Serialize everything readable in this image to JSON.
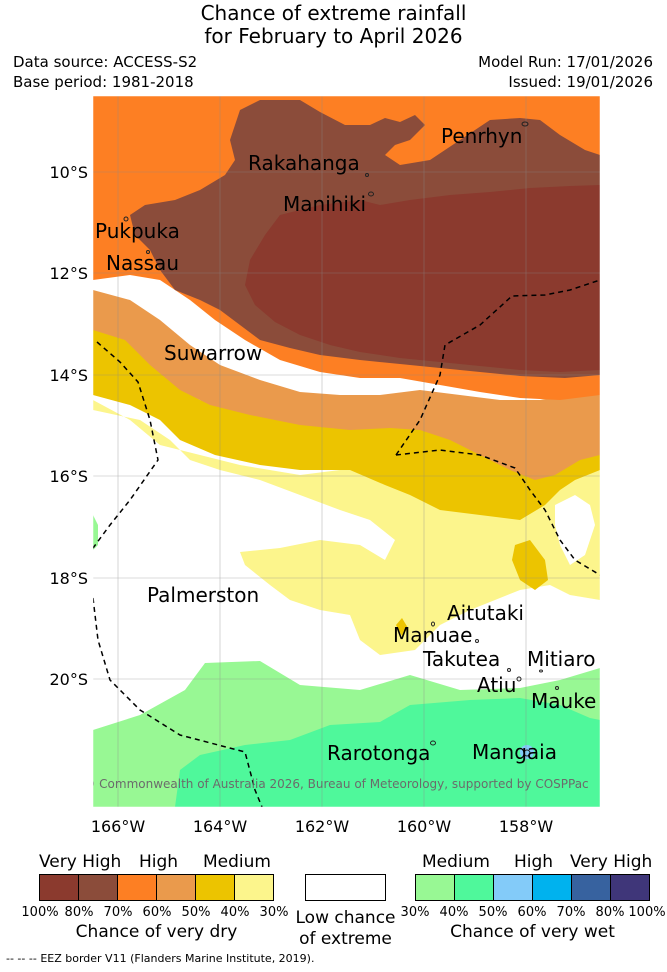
{
  "header": {
    "title_line1": "Chance of extreme rainfall",
    "title_line2": "for February to April 2026",
    "data_source": "Data source: ACCESS-S2",
    "base_period": "Base period: 1981-2018",
    "model_run": "Model Run: 17/01/2026",
    "issued": "Issued: 19/01/2026"
  },
  "map": {
    "places": [
      "Penrhyn",
      "Rakahanga",
      "Manihiki",
      "Pukpuka",
      "Nassau",
      "Suwarrow",
      "Palmerston",
      "Aitutaki",
      "Manuae",
      "Takutea",
      "Mitiaro",
      "Atiu",
      "Mauke",
      "Rarotonga",
      "Mangaia"
    ],
    "lat_ticks": [
      "10°S",
      "12°S",
      "14°S",
      "16°S",
      "18°S",
      "20°S"
    ],
    "lon_ticks": [
      "166°W",
      "164°W",
      "162°W",
      "160°W",
      "158°W"
    ],
    "copyright": "© Commonwealth of Australia 2026, Bureau of Meteorology, supported by COSPPac"
  },
  "colors": {
    "dry_100_80": "#8b3a2e",
    "dry_80_70": "#8b4c3a",
    "dry_70_60": "#fd7f23",
    "dry_60_50": "#ea9a4c",
    "dry_50_40": "#ecc400",
    "dry_40_30": "#fcf58c",
    "none": "#ffffff",
    "wet_30_40": "#98f894",
    "wet_40_50": "#4ff89b",
    "wet_50_60": "#83cbf9",
    "wet_60_70": "#00b2ee",
    "wet_70_80": "#37629f",
    "wet_80_100": "#3f3679"
  },
  "legend": {
    "dry_levels": [
      "Very High",
      "High",
      "Medium"
    ],
    "dry_percents": [
      "100%",
      "80%",
      "70%",
      "60%",
      "50%",
      "40%",
      "30%"
    ],
    "dry_caption": "Chance of very dry",
    "none_caption_line1": "Low chance",
    "none_caption_line2": "of extreme",
    "wet_levels": [
      "Medium",
      "High",
      "Very High"
    ],
    "wet_percents": [
      "30%",
      "40%",
      "50%",
      "60%",
      "70%",
      "80%",
      "100%"
    ],
    "wet_caption": "Chance of very wet"
  },
  "footer": {
    "eez_marker": "-- -- --",
    "eez_note": "EEZ border V11 (Flanders Marine Institute, 2019)."
  }
}
